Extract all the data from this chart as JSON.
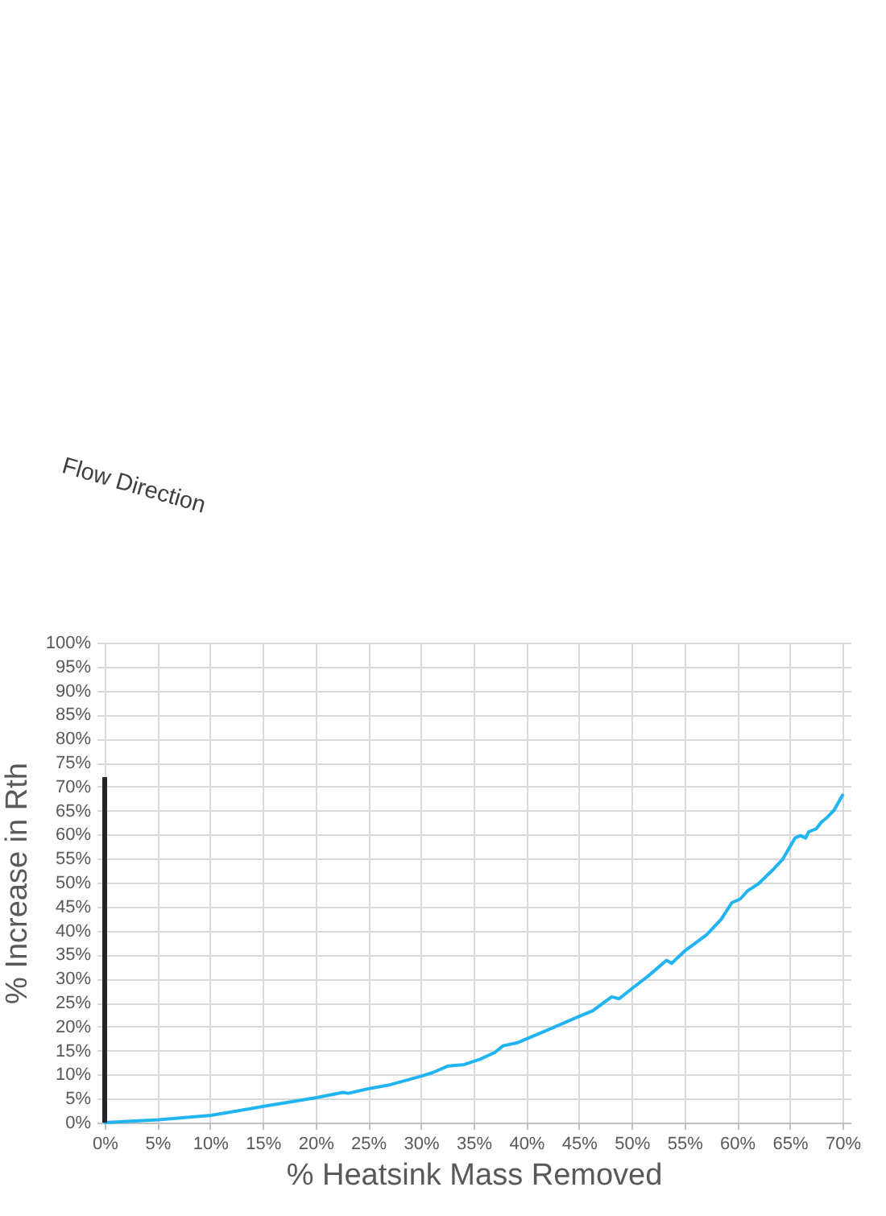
{
  "chart_data": {
    "type": "line",
    "xlabel": "% Heatsink Mass Removed",
    "ylabel": "% Increase in Rth",
    "annotations": [
      "Flow Direction"
    ],
    "series": [
      {
        "color": "#20b4f0",
        "x": [
          0,
          5.1,
          10.1,
          13.6,
          15.1,
          20.1,
          22.6,
          23.1,
          25.1,
          27.1,
          30.1,
          31.1,
          32.6,
          34.1,
          35.6,
          37.0,
          37.8,
          39.1,
          41.6,
          45.1,
          46.3,
          48.1,
          48.8,
          50.3,
          51.6,
          53.3,
          53.8,
          55.0,
          57.1,
          58.5,
          59.5,
          60.3,
          61.0,
          62.0,
          63.5,
          64.3,
          65.5,
          66.0,
          66.5,
          66.8,
          67.5,
          68.0,
          68.5,
          69.2,
          70.0
        ],
        "values": [
          0,
          0.6,
          1.5,
          2.8,
          3.4,
          5.2,
          6.3,
          6.1,
          7.1,
          7.9,
          9.7,
          10.4,
          11.8,
          12.1,
          13.2,
          14.6,
          16.0,
          16.6,
          18.9,
          22.2,
          23.3,
          26.2,
          25.8,
          28.4,
          30.6,
          33.8,
          33.2,
          35.7,
          39.1,
          42.4,
          45.8,
          46.6,
          48.3,
          49.7,
          52.9,
          54.8,
          59.3,
          59.8,
          59.3,
          60.6,
          61.2,
          62.6,
          63.5,
          65.1,
          68.2
        ]
      },
      {
        "type": "bar",
        "color": "#262626",
        "x": [
          0
        ],
        "values": [
          72
        ]
      }
    ],
    "xlim": [
      0,
      70
    ],
    "ylim": [
      0,
      100
    ],
    "xticks": [
      {
        "value": 0,
        "label": "0%"
      },
      {
        "value": 5,
        "label": "5%"
      },
      {
        "value": 10,
        "label": "10%"
      },
      {
        "value": 15,
        "label": "15%"
      },
      {
        "value": 20,
        "label": "20%"
      },
      {
        "value": 25,
        "label": "25%"
      },
      {
        "value": 30,
        "label": "30%"
      },
      {
        "value": 35,
        "label": "35%"
      },
      {
        "value": 40,
        "label": "40%"
      },
      {
        "value": 45,
        "label": "45%"
      },
      {
        "value": 50,
        "label": "50%"
      },
      {
        "value": 55,
        "label": "55%"
      },
      {
        "value": 60,
        "label": "60%"
      },
      {
        "value": 65,
        "label": "65%"
      },
      {
        "value": 70,
        "label": "70%"
      }
    ],
    "yticks": [
      {
        "value": 0,
        "label": "0%"
      },
      {
        "value": 5,
        "label": "5%"
      },
      {
        "value": 10,
        "label": "10%"
      },
      {
        "value": 15,
        "label": "15%"
      },
      {
        "value": 20,
        "label": "20%"
      },
      {
        "value": 25,
        "label": "25%"
      },
      {
        "value": 30,
        "label": "30%"
      },
      {
        "value": 35,
        "label": "35%"
      },
      {
        "value": 40,
        "label": "40%"
      },
      {
        "value": 45,
        "label": "45%"
      },
      {
        "value": 50,
        "label": "50%"
      },
      {
        "value": 55,
        "label": "55%"
      },
      {
        "value": 60,
        "label": "60%"
      },
      {
        "value": 65,
        "label": "65%"
      },
      {
        "value": 70,
        "label": "70%"
      },
      {
        "value": 75,
        "label": "75%"
      },
      {
        "value": 80,
        "label": "80%"
      },
      {
        "value": 85,
        "label": "85%"
      },
      {
        "value": 90,
        "label": "90%"
      },
      {
        "value": 95,
        "label": "95%"
      },
      {
        "value": 100,
        "label": "100%"
      }
    ],
    "grid": true
  }
}
